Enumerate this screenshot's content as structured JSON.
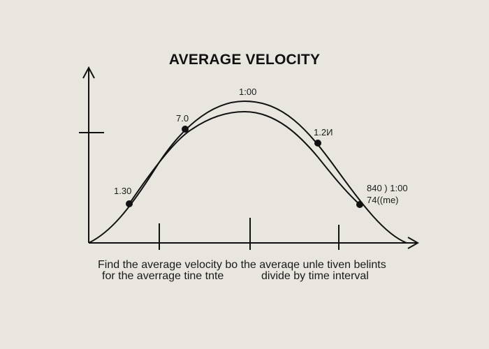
{
  "title": "AVERAGE VELOCITY",
  "labels": {
    "left_point": "1.30",
    "upper_left_point": "7.0",
    "peak": "1:00",
    "upper_right_point": "1.2И",
    "right_point_line1": "840 ) 1:00",
    "right_point_line2": "74((me)"
  },
  "caption": {
    "line1": "Find the average velocity bo the averaqe unle tiven belints",
    "line2_left": "for the averrage tine tnte",
    "line2_right": "divide by time interval"
  },
  "colors": {
    "background": "#e9e6df",
    "ink": "#111111"
  }
}
